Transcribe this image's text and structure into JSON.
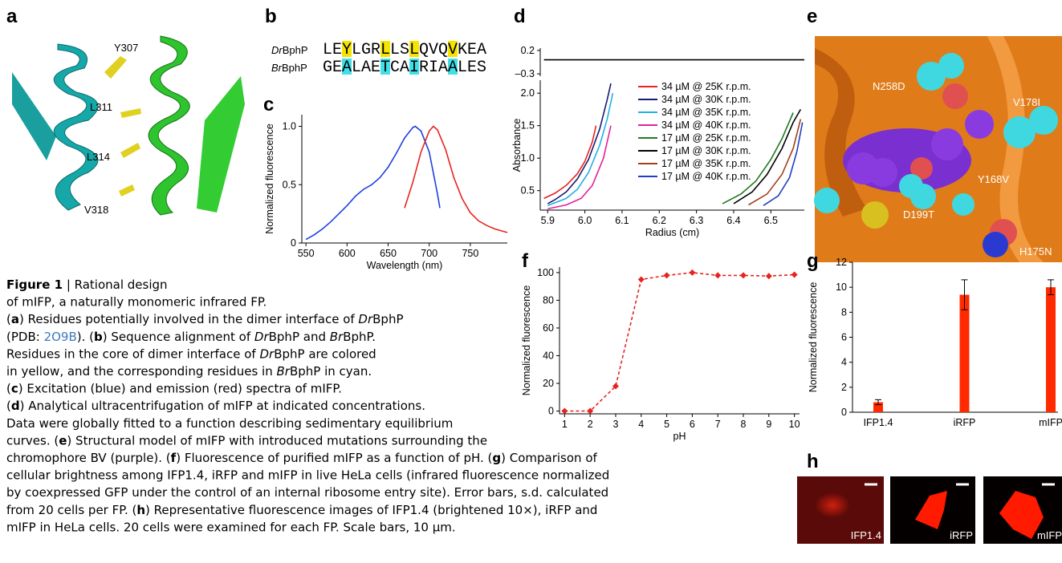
{
  "panel_labels": [
    "a",
    "b",
    "c",
    "d",
    "e",
    "f",
    "g",
    "h"
  ],
  "alignment": {
    "rows": [
      {
        "species": "Dr",
        "protein": "BphP",
        "sequence": "LEYLGRLLSLQVQVKEA",
        "highlighted": [
          2,
          6,
          9,
          13
        ],
        "highlight_color": "#f5e400"
      },
      {
        "species": "Br",
        "protein": "BphP",
        "sequence": "GEALAETCAIRIAALES",
        "highlighted": [
          2,
          6,
          9,
          13
        ],
        "highlight_color": "#3fe0e8"
      }
    ]
  },
  "structure_a": {
    "labels": [
      "Y307",
      "L311",
      "L314",
      "V318"
    ]
  },
  "structure_e": {
    "labels": [
      "N258D",
      "V178I",
      "Y168V",
      "D199T",
      "H175N"
    ]
  },
  "images_h": {
    "labels": [
      "IFP1.4",
      "iRFP",
      "mIFP"
    ]
  },
  "caption": {
    "lines": [
      [
        {
          "t": "Figure 1",
          "b": true
        },
        {
          "t": " | Rational design"
        }
      ],
      [
        {
          "t": "of mIFP, a naturally monomeric infrared FP."
        }
      ],
      [
        {
          "t": "("
        },
        {
          "t": "a",
          "b": true
        },
        {
          "t": ") Residues potentially involved in the dimer interface of "
        },
        {
          "t": "Dr",
          "i": true
        },
        {
          "t": "BphP"
        }
      ],
      [
        {
          "t": "(PDB: "
        },
        {
          "t": "2O9B",
          "link": true
        },
        {
          "t": "). ("
        },
        {
          "t": "b",
          "b": true
        },
        {
          "t": ") Sequence alignment of "
        },
        {
          "t": "Dr",
          "i": true
        },
        {
          "t": "BphP and "
        },
        {
          "t": "Br",
          "i": true
        },
        {
          "t": "BphP."
        }
      ],
      [
        {
          "t": "Residues in the core of dimer interface of "
        },
        {
          "t": "Dr",
          "i": true
        },
        {
          "t": "BphP are colored"
        }
      ],
      [
        {
          "t": "in yellow, and the corresponding residues in "
        },
        {
          "t": "Br",
          "i": true
        },
        {
          "t": "BphP in cyan."
        }
      ],
      [
        {
          "t": "("
        },
        {
          "t": "c",
          "b": true
        },
        {
          "t": ") Excitation (blue) and emission (red) spectra of mIFP."
        }
      ],
      [
        {
          "t": "("
        },
        {
          "t": "d",
          "b": true
        },
        {
          "t": ") Analytical ultracentrifugation of mIFP at indicated concentrations."
        }
      ],
      [
        {
          "t": "Data were globally fitted to a function describing sedimentary equilibrium"
        }
      ],
      [
        {
          "t": "curves. ("
        },
        {
          "t": "e",
          "b": true
        },
        {
          "t": ") Structural model of mIFP with introduced mutations surrounding the"
        }
      ],
      [
        {
          "t": "chromophore BV (purple). ("
        },
        {
          "t": "f",
          "b": true
        },
        {
          "t": ") Fluorescence of purified mIFP as a function of pH. ("
        },
        {
          "t": "g",
          "b": true
        },
        {
          "t": ") Comparison of"
        }
      ],
      [
        {
          "t": "cellular brightness among IFP1.4, iRFP and mIFP in live HeLa cells (infrared fluorescence normalized"
        }
      ],
      [
        {
          "t": "by coexpressed GFP under the control of an internal ribosome entry site). Error bars, s.d. calculated"
        }
      ],
      [
        {
          "t": "from 20 cells per FP. ("
        },
        {
          "t": "h",
          "b": true
        },
        {
          "t": ") Representative fluorescence images of IFP1.4 (brightened 10×), iRFP and"
        }
      ],
      [
        {
          "t": "mIFP in HeLa cells. 20 cells were examined for each FP. Scale bars, 10 µm."
        }
      ]
    ]
  },
  "chart_data": [
    {
      "type": "line",
      "x_label": "Wavelength (nm)",
      "y_label": "Normalized fluorescence",
      "xlim": [
        545,
        795
      ],
      "xticks": [
        550,
        600,
        650,
        700,
        750
      ],
      "ylim": [
        0,
        1.1
      ],
      "yticks": [
        0,
        0.5,
        {
          "value": 1,
          "label": "1.0"
        }
      ],
      "series": [
        {
          "color": "#1f3fe0",
          "x": [
            550,
            560,
            570,
            580,
            590,
            600,
            610,
            620,
            630,
            640,
            650,
            660,
            670,
            680,
            683,
            690,
            700,
            710,
            713
          ],
          "values": [
            0.03,
            0.07,
            0.12,
            0.18,
            0.25,
            0.32,
            0.4,
            0.46,
            0.5,
            0.56,
            0.65,
            0.77,
            0.9,
            0.99,
            1.0,
            0.96,
            0.78,
            0.42,
            0.3
          ]
        },
        {
          "color": "#e8231e",
          "x": [
            670,
            680,
            690,
            700,
            705,
            710,
            720,
            730,
            740,
            750,
            760,
            770,
            780,
            790,
            795
          ],
          "values": [
            0.3,
            0.52,
            0.78,
            0.96,
            1.0,
            0.97,
            0.8,
            0.56,
            0.38,
            0.26,
            0.19,
            0.15,
            0.12,
            0.1,
            0.09
          ]
        }
      ]
    },
    {
      "type": "line",
      "xlim": [
        5.88,
        6.59
      ],
      "ylim": [
        -0.35,
        0.25
      ],
      "yticks": [
        0.2,
        {
          "value": -0.3,
          "label": "–0.3"
        }
      ],
      "series": [
        {
          "color": "#000000",
          "x": [
            5.89,
            6.59
          ],
          "values": [
            0,
            0
          ]
        }
      ]
    },
    {
      "type": "line",
      "x_label": "Radius (cm)",
      "y_label": "Absorbance",
      "legend": "upper right",
      "xlim": [
        5.88,
        6.59
      ],
      "xticks": [
        5.9,
        {
          "value": 6,
          "label": "6.0"
        },
        6.1,
        6.2,
        6.3,
        6.4,
        6.5
      ],
      "ylim": [
        0.2,
        2.2
      ],
      "yticks": [
        0.5,
        {
          "value": 1,
          "label": "1.0"
        },
        1.5,
        {
          "value": 2,
          "label": "2.0"
        }
      ],
      "series": [
        {
          "name": "34 µM @ 25K r.p.m.",
          "color": "#e8231e",
          "x": [
            5.89,
            5.92,
            5.95,
            5.98,
            6.0,
            6.02,
            6.03
          ],
          "values": [
            0.38,
            0.46,
            0.58,
            0.76,
            0.95,
            1.25,
            1.5
          ]
        },
        {
          "name": "34 µM @ 30K r.p.m.",
          "color": "#1a1a6e",
          "x": [
            5.9,
            5.92,
            5.95,
            5.98,
            6.01,
            6.04,
            6.06,
            6.07
          ],
          "values": [
            0.3,
            0.36,
            0.48,
            0.68,
            0.98,
            1.45,
            1.9,
            2.15
          ]
        },
        {
          "name": "34 µM @ 35K r.p.m.",
          "color": "#22aee8",
          "x": [
            5.9,
            5.95,
            5.98,
            6.01,
            6.04,
            6.06,
            6.075
          ],
          "values": [
            0.27,
            0.38,
            0.52,
            0.78,
            1.2,
            1.6,
            2.0
          ]
        },
        {
          "name": "34 µM @ 40K r.p.m.",
          "color": "#e0239a",
          "x": [
            5.9,
            5.95,
            5.99,
            6.02,
            6.05,
            6.07
          ],
          "values": [
            0.22,
            0.28,
            0.38,
            0.58,
            1.0,
            1.5
          ]
        },
        {
          "name": "17 µM @ 25K r.p.m.",
          "color": "#1e7a1e",
          "x": [
            6.37,
            6.42,
            6.46,
            6.5,
            6.53,
            6.56
          ],
          "values": [
            0.3,
            0.45,
            0.65,
            0.98,
            1.3,
            1.7
          ]
        },
        {
          "name": "17 µM @ 30K r.p.m.",
          "color": "#000000",
          "x": [
            6.4,
            6.45,
            6.49,
            6.53,
            6.56,
            6.58
          ],
          "values": [
            0.3,
            0.48,
            0.75,
            1.15,
            1.55,
            1.75
          ]
        },
        {
          "name": "17 µM @ 35K r.p.m.",
          "color": "#a0401a",
          "x": [
            6.44,
            6.49,
            6.53,
            6.56,
            6.58
          ],
          "values": [
            0.28,
            0.45,
            0.75,
            1.15,
            1.6
          ]
        },
        {
          "name": "17 µM @ 40K r.p.m.",
          "color": "#1f3fc0",
          "x": [
            6.48,
            6.52,
            6.55,
            6.57,
            6.585
          ],
          "values": [
            0.27,
            0.42,
            0.7,
            1.1,
            1.55
          ]
        }
      ]
    },
    {
      "type": "line",
      "x_label": "pH",
      "y_label": "Normalized fluorescence",
      "line_style": "dashed",
      "marker": "diamond",
      "xlim": [
        0.8,
        10.2
      ],
      "xticks": [
        1,
        2,
        3,
        4,
        5,
        6,
        7,
        8,
        9,
        10
      ],
      "ylim": [
        -2,
        104
      ],
      "yticks": [
        0,
        20,
        40,
        60,
        80,
        100
      ],
      "x": [
        1,
        2,
        3,
        4,
        5,
        6,
        7,
        8,
        9,
        10
      ],
      "series": [
        {
          "color": "#e8231e",
          "values": [
            0,
            0,
            18,
            95,
            98,
            100,
            98,
            98,
            97.5,
            98.5
          ]
        }
      ]
    },
    {
      "type": "bar",
      "y_label": "Normalized fluorescence",
      "color": "#ff2a00",
      "categories": [
        "IFP1.4",
        "iRFP",
        "mIFP"
      ],
      "values": [
        0.8,
        9.4,
        10.0
      ],
      "errors": [
        0.2,
        1.2,
        0.6
      ],
      "ylim": [
        0,
        12
      ],
      "yticks": [
        0,
        2,
        4,
        6,
        8,
        10,
        12
      ]
    }
  ]
}
